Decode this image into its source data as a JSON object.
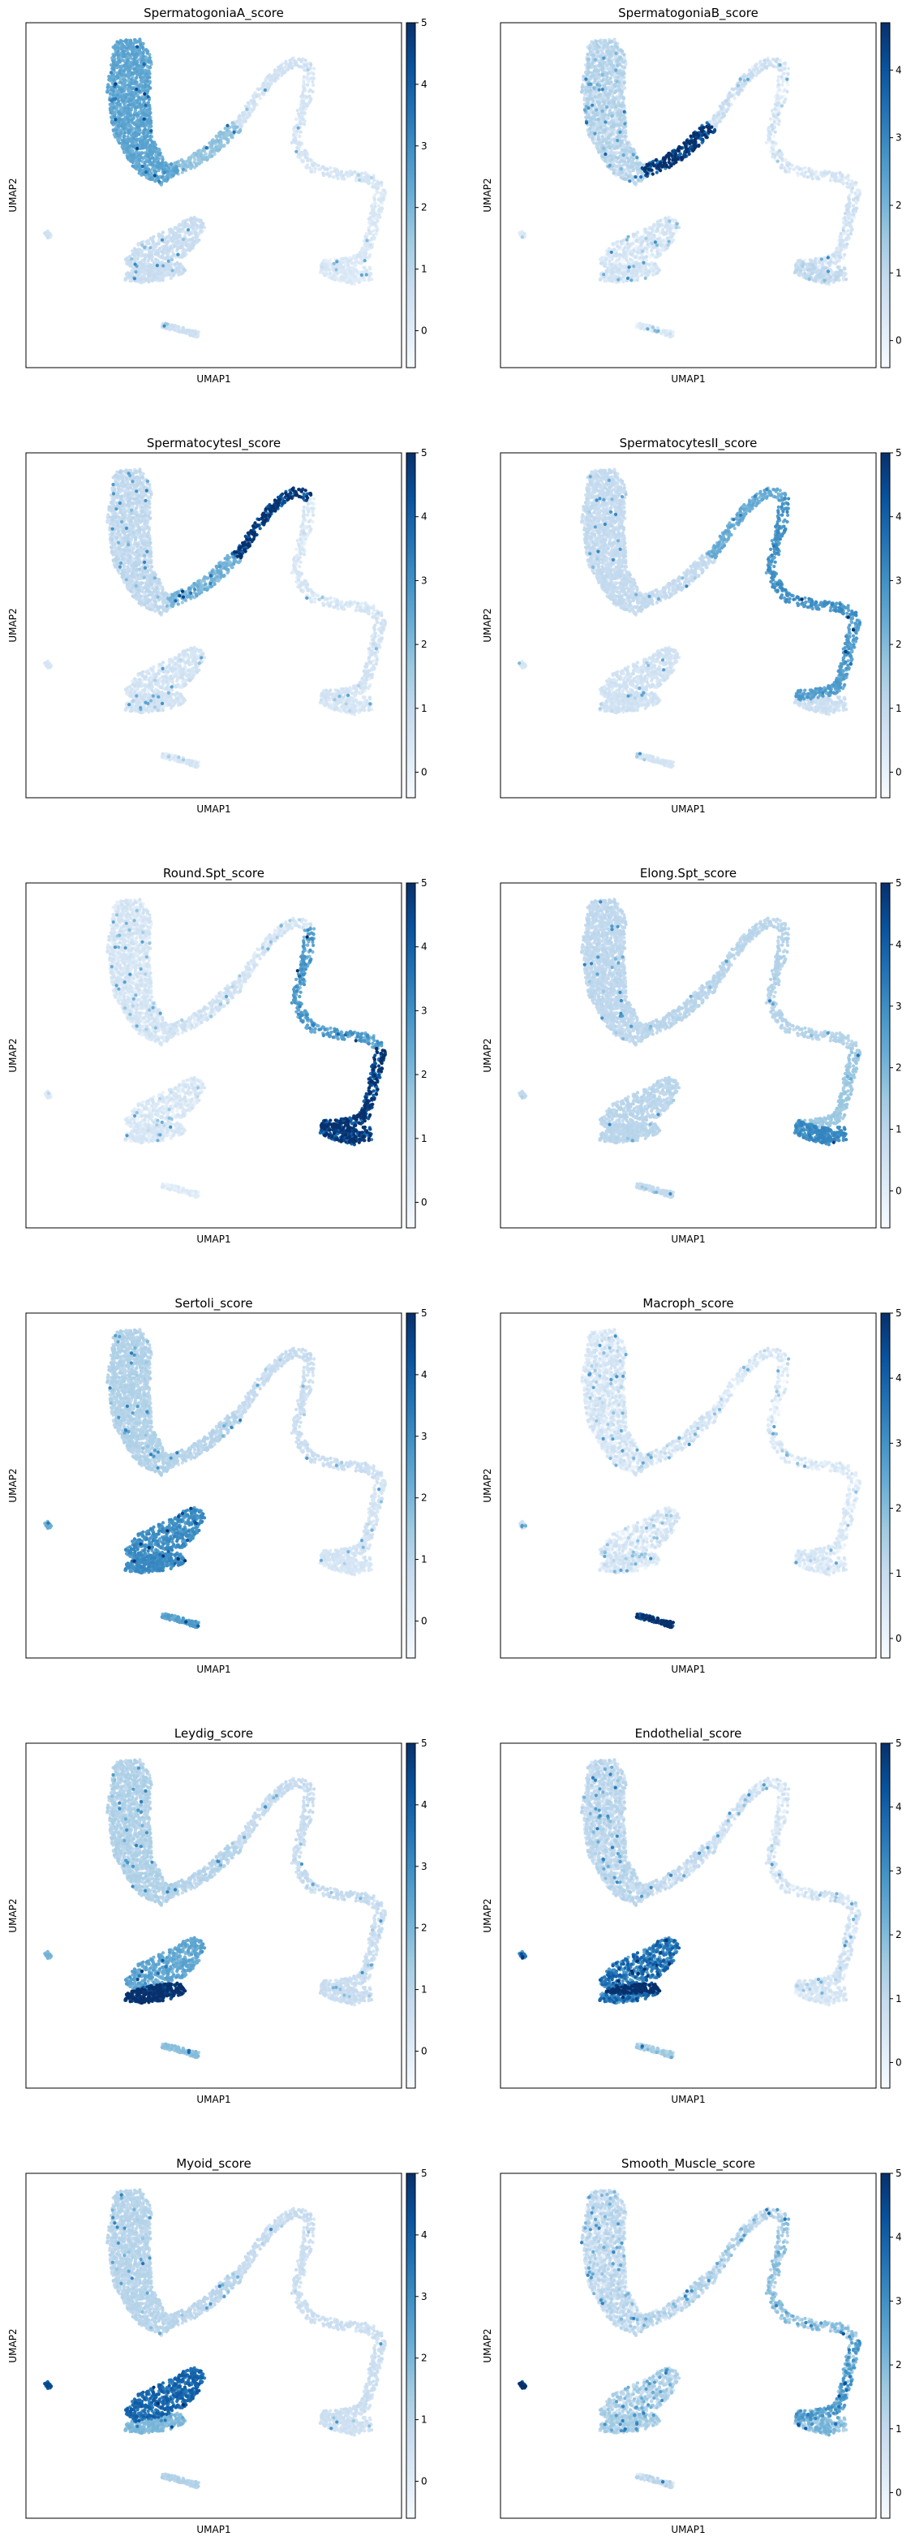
{
  "figure": {
    "colormap": "Blues",
    "colormap_stops": [
      "#f7fbff",
      "#deebf7",
      "#c6dbef",
      "#9ecae1",
      "#6baed6",
      "#4292c6",
      "#2171b5",
      "#08519c",
      "#08306b"
    ],
    "xlabel": "UMAP1",
    "ylabel": "UMAP2"
  },
  "chart_data": [
    {
      "type": "scatter",
      "title": "SpermatogoniaA_score",
      "xlabel": "UMAP1",
      "ylabel": "UMAP2",
      "colorbar_ticks": [
        "0",
        "1",
        "2",
        "3",
        "4",
        "5"
      ],
      "colorbar_range": [
        -0.6,
        5.0
      ],
      "regions": {
        "spgA": 2.2,
        "spgB": 1.5,
        "spc1": 0.3,
        "spc2": 0.2,
        "round": 0.1,
        "elong": 0.0,
        "somatic": 0.5,
        "macroph": 0.4,
        "small": 0.3
      },
      "speckle": 0.3
    },
    {
      "type": "scatter",
      "title": "SpermatogoniaB_score",
      "xlabel": "UMAP1",
      "ylabel": "UMAP2",
      "colorbar_ticks": [
        "0",
        "1",
        "2",
        "3",
        "4"
      ],
      "colorbar_range": [
        -0.4,
        4.7
      ],
      "regions": {
        "spgA": 0.8,
        "spgB": 4.2,
        "spc1": 0.4,
        "spc2": 0.2,
        "round": 0.3,
        "elong": 0.6,
        "somatic": 0.2,
        "macroph": 0.0,
        "small": 0.0
      },
      "speckle": 0.5
    },
    {
      "type": "scatter",
      "title": "SpermatocytesI_score",
      "xlabel": "UMAP1",
      "ylabel": "UMAP2",
      "colorbar_ticks": [
        "0",
        "1",
        "2",
        "3",
        "4",
        "5"
      ],
      "colorbar_range": [
        -0.4,
        5.0
      ],
      "regions": {
        "spgA": 0.8,
        "spgB": 2.0,
        "spc1": 4.5,
        "spc2": 0.3,
        "round": 0.4,
        "elong": 0.3,
        "somatic": 0.4,
        "macroph": 0.3,
        "small": 0.2
      },
      "speckle": 0.35
    },
    {
      "type": "scatter",
      "title": "SpermatocytesII_score",
      "xlabel": "UMAP1",
      "ylabel": "UMAP2",
      "colorbar_ticks": [
        "0",
        "1",
        "2",
        "3",
        "4",
        "5"
      ],
      "colorbar_range": [
        -0.4,
        5.0
      ],
      "regions": {
        "spgA": 0.8,
        "spgB": 0.8,
        "spc1": 2.2,
        "spc2": 2.8,
        "round": 2.5,
        "elong": 0.6,
        "somatic": 0.5,
        "macroph": 0.4,
        "small": 0.3
      },
      "speckle": 0.25
    },
    {
      "type": "scatter",
      "title": "Round.Spt_score",
      "xlabel": "UMAP1",
      "ylabel": "UMAP2",
      "colorbar_ticks": [
        "0",
        "1",
        "2",
        "3",
        "4",
        "5"
      ],
      "colorbar_range": [
        -0.4,
        5.0
      ],
      "regions": {
        "spgA": 0.3,
        "spgB": 0.4,
        "spc1": 0.3,
        "spc2": 2.5,
        "round": 4.5,
        "elong": 4.2,
        "somatic": 0.2,
        "macroph": 0.0,
        "small": 0.0
      },
      "speckle": 0.4
    },
    {
      "type": "scatter",
      "title": "Elong.Spt_score",
      "xlabel": "UMAP1",
      "ylabel": "UMAP2",
      "colorbar_ticks": [
        "0",
        "1",
        "2",
        "3",
        "4",
        "5"
      ],
      "colorbar_range": [
        -0.6,
        5.0
      ],
      "regions": {
        "spgA": 0.8,
        "spgB": 0.9,
        "spc1": 0.9,
        "spc2": 1.0,
        "round": 1.4,
        "elong": 2.9,
        "somatic": 0.9,
        "macroph": 0.7,
        "small": 0.7
      },
      "speckle": 0.2
    },
    {
      "type": "scatter",
      "title": "Sertoli_score",
      "xlabel": "UMAP1",
      "ylabel": "UMAP2",
      "colorbar_ticks": [
        "0",
        "1",
        "2",
        "3",
        "4",
        "5"
      ],
      "colorbar_range": [
        -0.6,
        5.0
      ],
      "regions": {
        "spgA": 1.0,
        "spgB": 0.9,
        "spc1": 0.6,
        "spc2": 0.5,
        "round": 0.3,
        "elong": 0.2,
        "somatic": 2.8,
        "macroph": 2.4,
        "small": 2.0
      },
      "speckle": 0.25
    },
    {
      "type": "scatter",
      "title": "Macroph_score",
      "xlabel": "UMAP1",
      "ylabel": "UMAP2",
      "colorbar_ticks": [
        "0",
        "1",
        "2",
        "3",
        "4",
        "5"
      ],
      "colorbar_range": [
        -0.3,
        5.0
      ],
      "regions": {
        "spgA": 0.2,
        "spgB": 0.2,
        "spc1": 0.1,
        "spc2": 0.1,
        "round": 0.1,
        "elong": 0.1,
        "somatic": 0.2,
        "macroph": 4.8,
        "small": 0.4
      },
      "speckle": 0.6
    },
    {
      "type": "scatter",
      "title": "Leydig_score",
      "xlabel": "UMAP1",
      "ylabel": "UMAP2",
      "colorbar_ticks": [
        "0",
        "1",
        "2",
        "3",
        "4",
        "5"
      ],
      "colorbar_range": [
        -0.6,
        5.0
      ],
      "regions": {
        "spgA": 1.0,
        "spgB": 0.9,
        "spc1": 0.6,
        "spc2": 0.6,
        "round": 0.5,
        "elong": 0.5,
        "somatic": 2.2,
        "macroph": 1.6,
        "small": 1.8,
        "leydig": 4.8
      },
      "speckle": 0.3
    },
    {
      "type": "scatter",
      "title": "Endothelial_score",
      "xlabel": "UMAP1",
      "ylabel": "UMAP2",
      "colorbar_ticks": [
        "0",
        "1",
        "2",
        "3",
        "4",
        "5"
      ],
      "colorbar_range": [
        -0.4,
        5.0
      ],
      "regions": {
        "spgA": 0.8,
        "spgB": 0.6,
        "spc1": 0.4,
        "spc2": 0.3,
        "round": 0.3,
        "elong": 0.2,
        "somatic": 3.2,
        "macroph": 1.2,
        "small": 2.8,
        "endo": 4.9
      },
      "speckle": 0.5
    },
    {
      "type": "scatter",
      "title": "Myoid_score",
      "xlabel": "UMAP1",
      "ylabel": "UMAP2",
      "colorbar_ticks": [
        "0",
        "1",
        "2",
        "3",
        "4",
        "5"
      ],
      "colorbar_range": [
        -0.6,
        5.0
      ],
      "regions": {
        "spgA": 0.9,
        "spgB": 0.8,
        "spc1": 0.6,
        "spc2": 0.5,
        "round": 0.5,
        "elong": 0.4,
        "somatic": 1.8,
        "macroph": 1.0,
        "small": 4.0,
        "myoid": 3.6
      },
      "speckle": 0.25
    },
    {
      "type": "scatter",
      "title": "Smooth_Muscle_score",
      "xlabel": "UMAP1",
      "ylabel": "UMAP2",
      "colorbar_ticks": [
        "0",
        "1",
        "2",
        "3",
        "4",
        "5"
      ],
      "colorbar_range": [
        -0.4,
        5.0
      ],
      "regions": {
        "spgA": 0.6,
        "spgB": 0.8,
        "spc1": 0.8,
        "spc2": 1.4,
        "round": 2.2,
        "elong": 1.6,
        "somatic": 1.0,
        "macroph": 0.6,
        "small": 4.6
      },
      "speckle": 0.7
    }
  ]
}
